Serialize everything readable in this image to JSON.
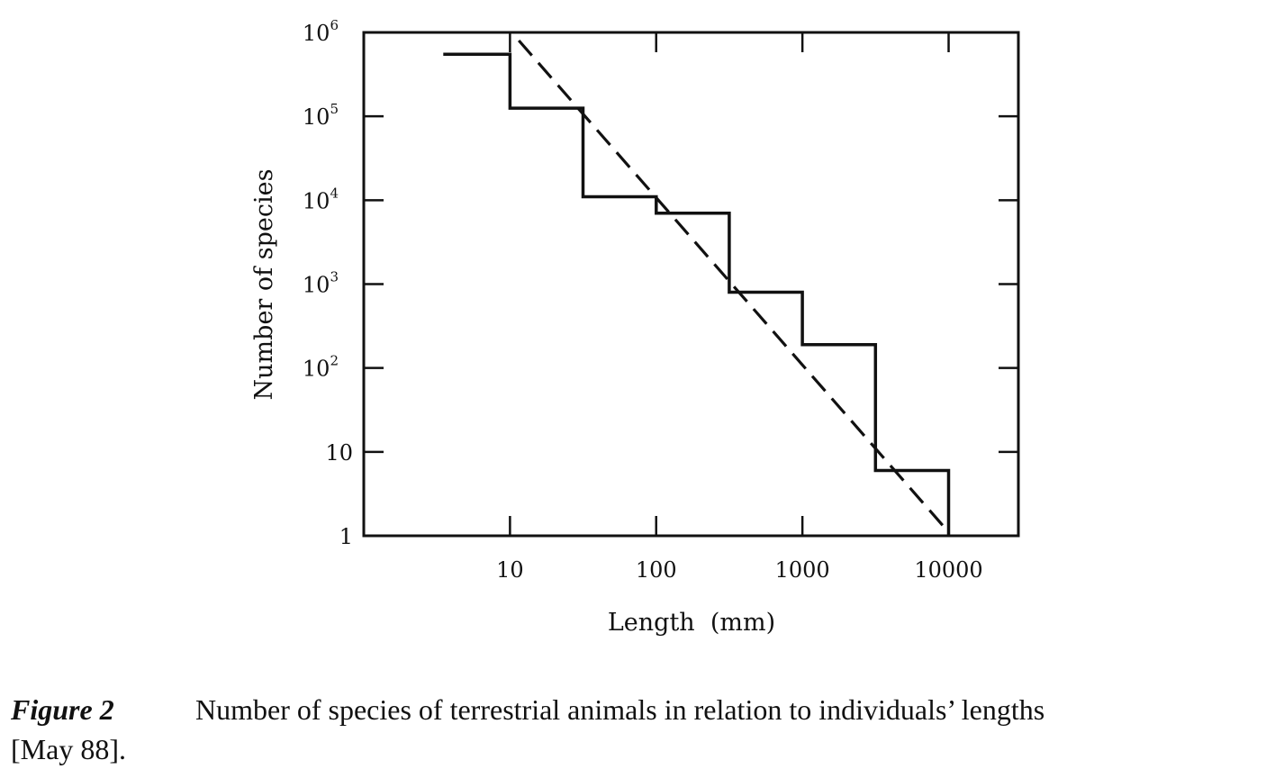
{
  "chart_data": {
    "type": "line",
    "xlabel": "Length  (mm)",
    "ylabel": "Number of species",
    "x_scale": "log",
    "y_scale": "log",
    "xlim": [
      1,
      30000
    ],
    "ylim": [
      1,
      1000000
    ],
    "x_ticks": [
      {
        "value": 10,
        "label": "10"
      },
      {
        "value": 100,
        "label": "100"
      },
      {
        "value": 1000,
        "label": "1000"
      },
      {
        "value": 10000,
        "label": "10000"
      }
    ],
    "y_ticks": [
      {
        "value": 1,
        "base": "1",
        "exp": ""
      },
      {
        "value": 10,
        "base": "10",
        "exp": ""
      },
      {
        "value": 100,
        "base": "10",
        "exp": "2"
      },
      {
        "value": 1000,
        "base": "10",
        "exp": "3"
      },
      {
        "value": 10000,
        "base": "10",
        "exp": "4"
      },
      {
        "value": 100000,
        "base": "10",
        "exp": "5"
      },
      {
        "value": 1000000,
        "base": "10",
        "exp": "6"
      }
    ],
    "grid": false,
    "series": [
      {
        "style": "solid-step",
        "points": [
          {
            "x": 3.5,
            "y": 550000
          },
          {
            "x": 10,
            "y": 550000
          },
          {
            "x": 10,
            "y": 125000
          },
          {
            "x": 31.6,
            "y": 125000
          },
          {
            "x": 31.6,
            "y": 11000
          },
          {
            "x": 100,
            "y": 11000
          },
          {
            "x": 100,
            "y": 7000
          },
          {
            "x": 316,
            "y": 7000
          },
          {
            "x": 316,
            "y": 800
          },
          {
            "x": 1000,
            "y": 800
          },
          {
            "x": 1000,
            "y": 190
          },
          {
            "x": 3162,
            "y": 190
          },
          {
            "x": 3162,
            "y": 6
          },
          {
            "x": 10000,
            "y": 6
          },
          {
            "x": 10000,
            "y": 1
          }
        ]
      },
      {
        "style": "dashed-fit",
        "points": [
          {
            "x": 11.5,
            "y": 800000
          },
          {
            "x": 9600,
            "y": 1.2
          }
        ]
      }
    ]
  },
  "caption": {
    "label": "Figure 2",
    "text": "Number of species of terrestrial animals in relation to individuals’ lengths",
    "text2": "[May 88]."
  },
  "colors": {
    "ink": "#111111",
    "background": "#ffffff"
  }
}
